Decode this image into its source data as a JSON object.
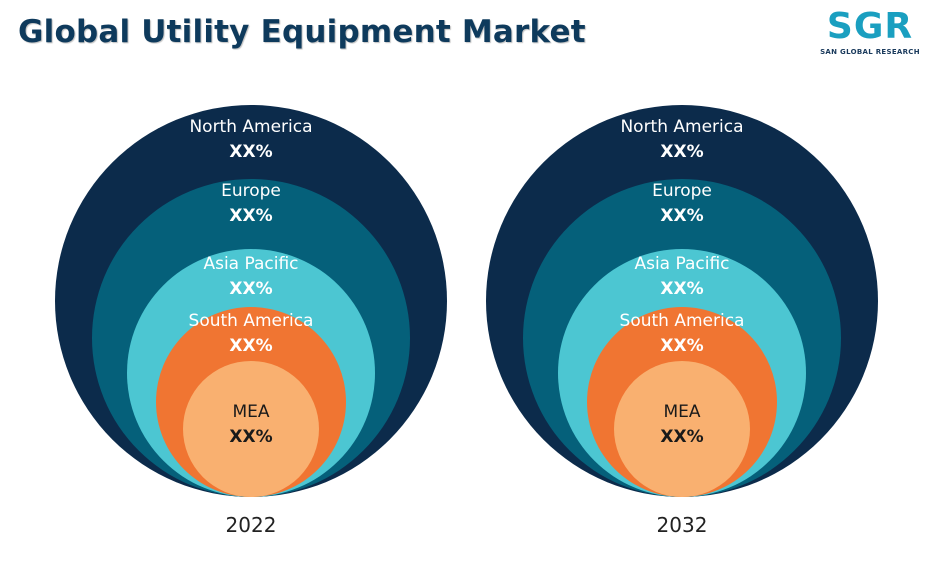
{
  "title": "Global Utility Equipment Market",
  "logo": {
    "text": "SGR",
    "subtitle": "SAN GLOBAL RESEARCH",
    "color": "#1a9fc0"
  },
  "regions": [
    {
      "name": "North America",
      "value": "XX%",
      "color": "#0c2b4b",
      "text_color": "#ffffff"
    },
    {
      "name": "Europe",
      "value": "XX%",
      "color": "#05607a",
      "text_color": "#ffffff"
    },
    {
      "name": "Asia Pacific",
      "value": "XX%",
      "color": "#4cc6d2",
      "text_color": "#ffffff"
    },
    {
      "name": "South America",
      "value": "XX%",
      "color": "#f07532",
      "text_color": "#ffffff"
    },
    {
      "name": "MEA",
      "value": "XX%",
      "color": "#f9b070",
      "text_color": "#1a1a1a"
    }
  ],
  "years": [
    "2022",
    "2032"
  ]
}
